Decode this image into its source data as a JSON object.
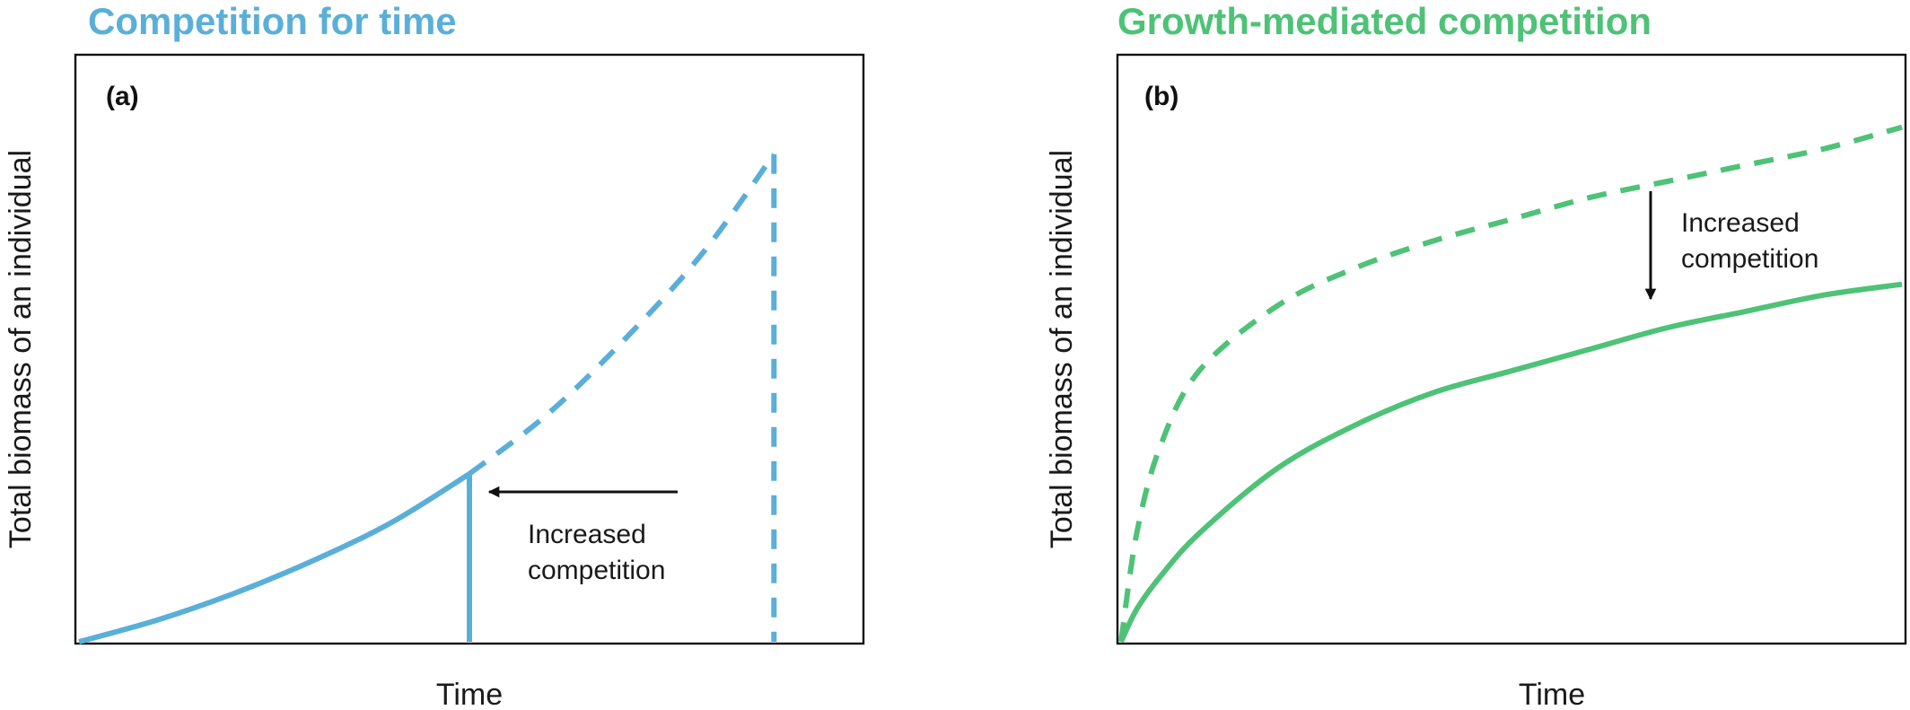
{
  "colors": {
    "blue": "#5aafd9",
    "green": "#4ec277",
    "axis": "#111111",
    "arrow": "#111111"
  },
  "chart_data": [
    {
      "type": "line",
      "title": "Competition for time",
      "panel_label": "(a)",
      "xlabel": "Time",
      "ylabel": "Total biomass of an individual",
      "xlim": [
        0,
        1
      ],
      "ylim": [
        0,
        1
      ],
      "series": [
        {
          "style": "solid",
          "x": [
            0.0,
            0.1,
            0.2,
            0.3,
            0.4,
            0.5
          ],
          "y": [
            0.0,
            0.04,
            0.09,
            0.15,
            0.22,
            0.31
          ]
        },
        {
          "style": "dashed",
          "x": [
            0.5,
            0.6,
            0.7,
            0.8,
            0.89
          ],
          "y": [
            0.31,
            0.42,
            0.56,
            0.72,
            0.9
          ]
        }
      ],
      "drops": [
        {
          "style": "solid",
          "x": 0.5,
          "y_top": 0.31
        },
        {
          "style": "dashed",
          "x": 0.89,
          "y_top": 0.9
        }
      ],
      "annotation": {
        "lines": [
          "Increased",
          "competition"
        ],
        "arrow": "left"
      }
    },
    {
      "type": "line",
      "title": "Growth-mediated competition",
      "panel_label": "(b)",
      "xlabel": "Time",
      "ylabel": "Total biomass of an individual",
      "xlim": [
        0,
        1
      ],
      "ylim": [
        0,
        1
      ],
      "series": [
        {
          "style": "dashed",
          "x": [
            0.0,
            0.02,
            0.05,
            0.1,
            0.2,
            0.3,
            0.4,
            0.5,
            0.6,
            0.7,
            0.8,
            0.9,
            1.0
          ],
          "y": [
            0.0,
            0.2,
            0.36,
            0.5,
            0.62,
            0.69,
            0.74,
            0.78,
            0.82,
            0.85,
            0.88,
            0.91,
            0.95
          ]
        },
        {
          "style": "solid",
          "x": [
            0.0,
            0.02,
            0.05,
            0.1,
            0.2,
            0.3,
            0.4,
            0.5,
            0.6,
            0.7,
            0.8,
            0.9,
            1.0
          ],
          "y": [
            0.0,
            0.06,
            0.12,
            0.2,
            0.32,
            0.4,
            0.46,
            0.5,
            0.54,
            0.58,
            0.61,
            0.64,
            0.66
          ]
        }
      ],
      "annotation": {
        "lines": [
          "Increased",
          "competition"
        ],
        "arrow": "down"
      }
    }
  ]
}
